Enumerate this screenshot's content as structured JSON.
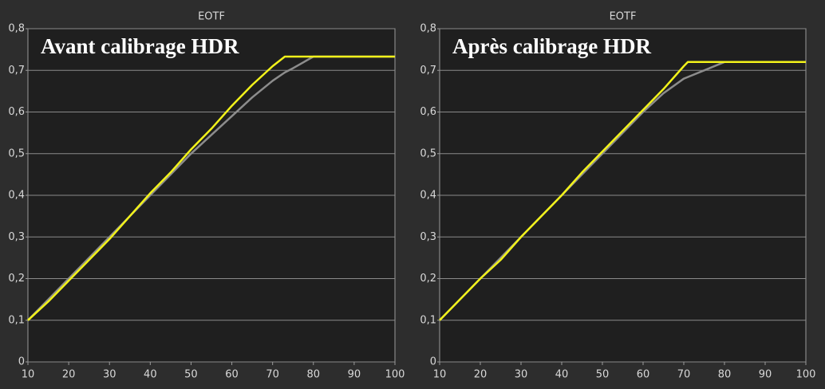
{
  "chart_data": [
    {
      "type": "line",
      "title": "EOTF",
      "annotation": "Avant calibrage HDR",
      "x": [
        10,
        15,
        20,
        25,
        30,
        35,
        40,
        45,
        50,
        55,
        60,
        65,
        70,
        73,
        75,
        80,
        85,
        90,
        95,
        100
      ],
      "series": [
        {
          "color": "#f2f21a",
          "values": [
            0.1,
            0.145,
            0.195,
            0.245,
            0.295,
            0.35,
            0.405,
            0.455,
            0.51,
            0.56,
            0.615,
            0.665,
            0.71,
            0.733,
            0.733,
            0.733,
            0.733,
            0.733,
            0.733,
            0.733
          ]
        },
        {
          "color": "#8c8c8c",
          "values": [
            0.1,
            0.15,
            0.2,
            0.25,
            0.3,
            0.35,
            0.4,
            0.45,
            0.5,
            0.545,
            0.59,
            0.635,
            0.675,
            0.695,
            0.705,
            0.733,
            0.733,
            0.733,
            0.733,
            0.733
          ]
        }
      ],
      "xlim": [
        10,
        100
      ],
      "xticks": [
        10,
        20,
        30,
        40,
        50,
        60,
        70,
        80,
        90,
        100
      ],
      "ylim": [
        0,
        0.8
      ],
      "yticks": [
        0,
        {
          "value": 0.1,
          "label": "0,1"
        },
        {
          "value": 0.2,
          "label": "0,2"
        },
        {
          "value": 0.3,
          "label": "0,3"
        },
        {
          "value": 0.4,
          "label": "0,4"
        },
        {
          "value": 0.5,
          "label": "0,5"
        },
        {
          "value": 0.6,
          "label": "0,6"
        },
        {
          "value": 0.7,
          "label": "0,7"
        },
        {
          "value": 0.8,
          "label": "0,8"
        }
      ],
      "grid": true
    },
    {
      "type": "line",
      "title": "EOTF",
      "annotation": "Après calibrage HDR",
      "x": [
        10,
        15,
        20,
        25,
        30,
        35,
        40,
        45,
        50,
        55,
        60,
        65,
        70,
        71,
        75,
        80,
        85,
        90,
        95,
        100
      ],
      "series": [
        {
          "color": "#f2f21a",
          "values": [
            0.1,
            0.15,
            0.2,
            0.245,
            0.3,
            0.35,
            0.4,
            0.455,
            0.505,
            0.555,
            0.605,
            0.655,
            0.71,
            0.72,
            0.72,
            0.72,
            0.72,
            0.72,
            0.72,
            0.72
          ]
        },
        {
          "color": "#8c8c8c",
          "values": [
            0.1,
            0.15,
            0.2,
            0.25,
            0.3,
            0.35,
            0.4,
            0.45,
            0.5,
            0.55,
            0.6,
            0.645,
            0.68,
            0.684,
            0.7,
            0.72,
            0.72,
            0.72,
            0.72,
            0.72
          ]
        }
      ],
      "xlim": [
        10,
        100
      ],
      "xticks": [
        10,
        20,
        30,
        40,
        50,
        60,
        70,
        80,
        90,
        100
      ],
      "ylim": [
        0,
        0.8
      ],
      "yticks": [
        0,
        {
          "value": 0.1,
          "label": "0,1"
        },
        {
          "value": 0.2,
          "label": "0,2"
        },
        {
          "value": 0.3,
          "label": "0,3"
        },
        {
          "value": 0.4,
          "label": "0,4"
        },
        {
          "value": 0.5,
          "label": "0,5"
        },
        {
          "value": 0.6,
          "label": "0,6"
        },
        {
          "value": 0.7,
          "label": "0,7"
        },
        {
          "value": 0.8,
          "label": "0,8"
        }
      ],
      "grid": true
    }
  ]
}
